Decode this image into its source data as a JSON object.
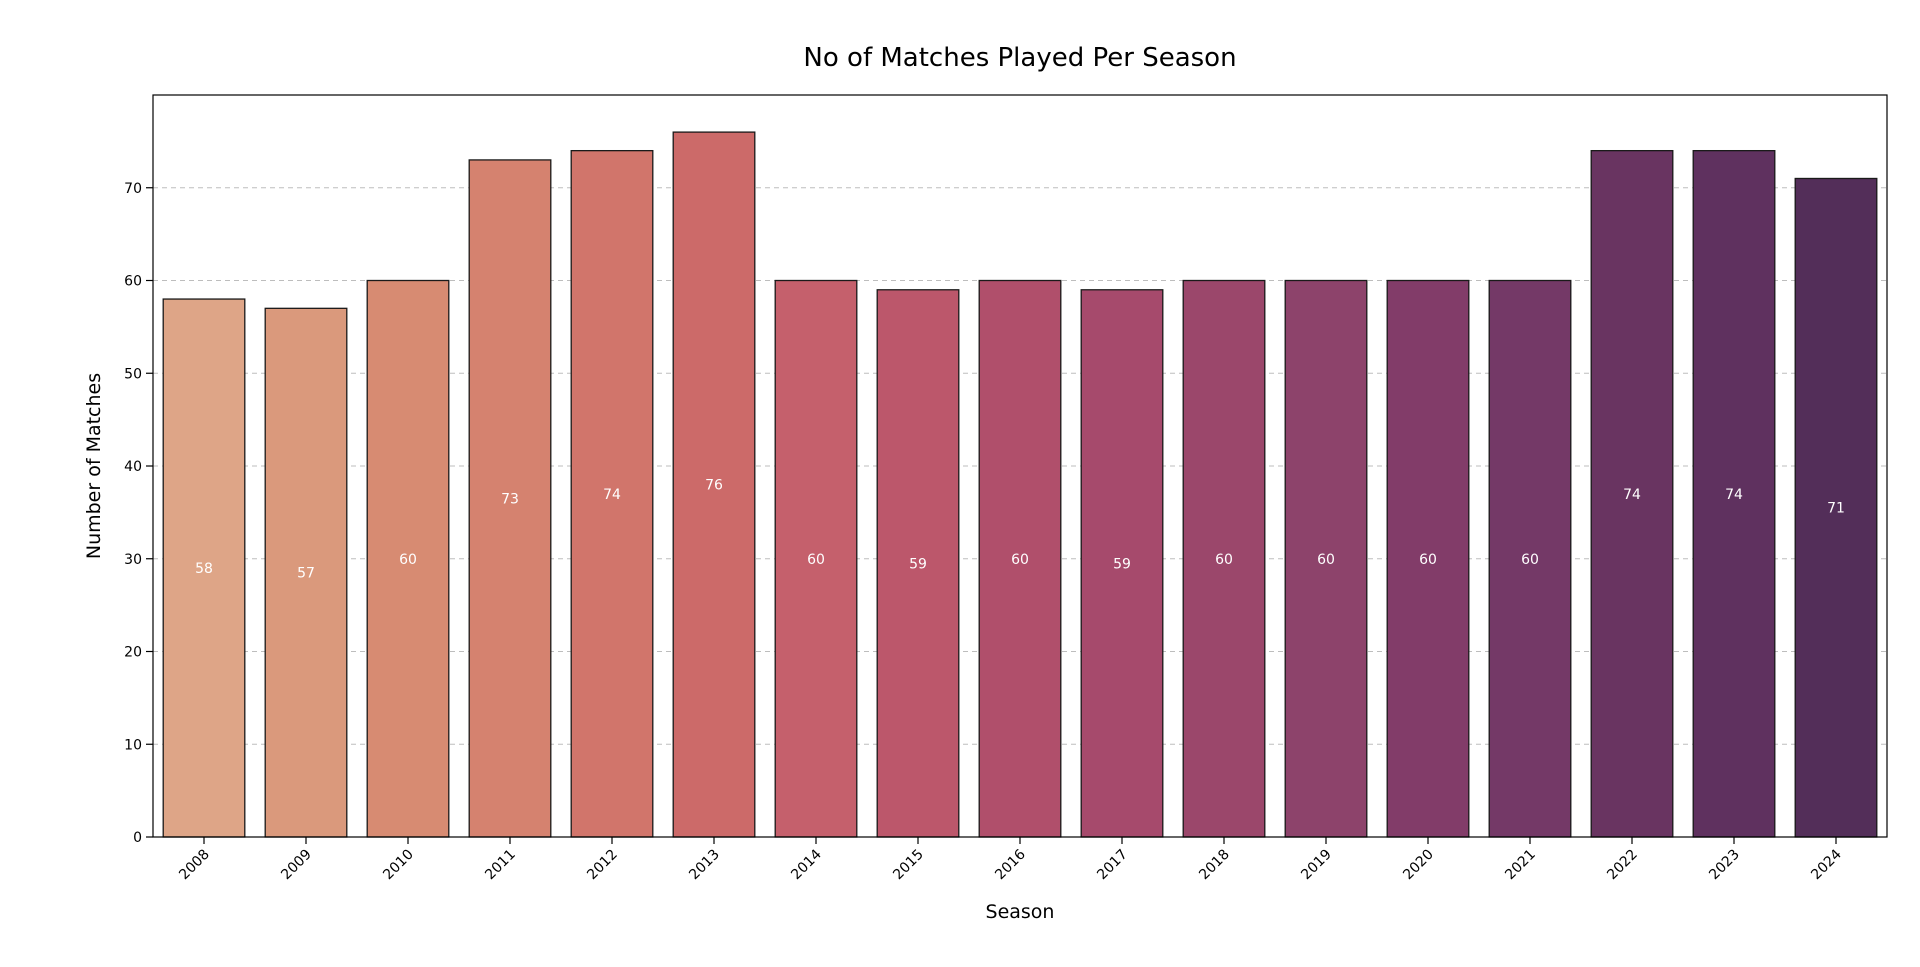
{
  "chart_data": {
    "type": "bar",
    "title": "No of Matches Played Per Season",
    "xlabel": "Season",
    "ylabel": "Number of Matches",
    "ylim": [
      0,
      80
    ],
    "yticks": [
      0,
      10,
      20,
      30,
      40,
      50,
      60,
      70
    ],
    "grid": "y-dashed",
    "categories": [
      "2008",
      "2009",
      "2010",
      "2011",
      "2012",
      "2013",
      "2014",
      "2015",
      "2016",
      "2017",
      "2018",
      "2019",
      "2020",
      "2021",
      "2022",
      "2023",
      "2024"
    ],
    "values": [
      58,
      57,
      60,
      73,
      74,
      76,
      60,
      59,
      60,
      59,
      60,
      60,
      60,
      60,
      74,
      74,
      71
    ],
    "colors": [
      "#dea587",
      "#da997c",
      "#d78b72",
      "#d5826f",
      "#d1756b",
      "#cc6a69",
      "#c5606c",
      "#bc576b",
      "#b04f6b",
      "#a64a6c",
      "#9b476b",
      "#8d436b",
      "#823c69",
      "#743967",
      "#693461",
      "#5f315f",
      "#532e59"
    ]
  }
}
